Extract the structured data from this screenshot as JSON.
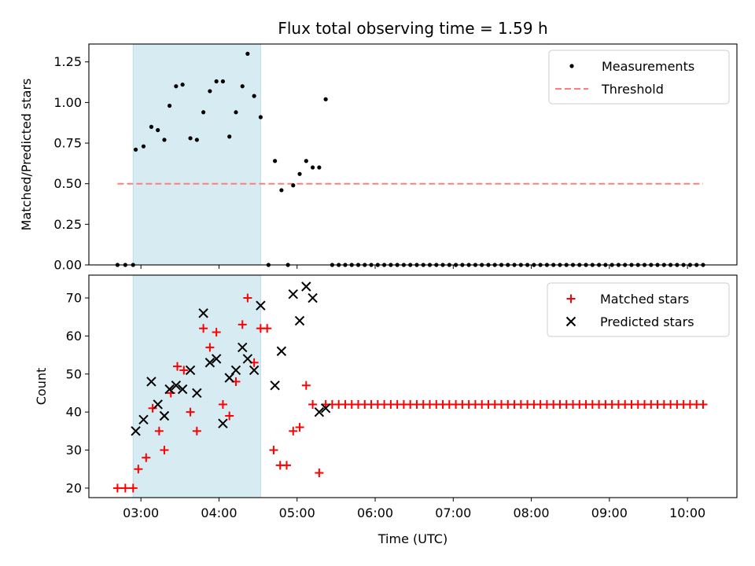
{
  "figure": {
    "title": "Flux total observing time = 1.59 h"
  },
  "chart_data": [
    {
      "type": "scatter",
      "title": "Flux total observing time = 1.59 h",
      "ylabel": "Matched/Predicted stars",
      "ylim": [
        0,
        1.36
      ],
      "yticks": [
        "0.00",
        "0.25",
        "0.50",
        "0.75",
        "1.00",
        "1.25"
      ],
      "shaded_span": [
        "02:54",
        "04:32"
      ],
      "shade_color": "#add8e6",
      "legend_position": "upper right",
      "series": [
        {
          "name": "Measurements",
          "kind": "points",
          "color": "#000000",
          "points": [
            [
              "02:42",
              0
            ],
            [
              "02:48",
              0
            ],
            [
              "02:54",
              0
            ],
            [
              "02:56",
              0.71
            ],
            [
              "03:02",
              0.73
            ],
            [
              "03:08",
              0.85
            ],
            [
              "03:13",
              0.83
            ],
            [
              "03:18",
              0.77
            ],
            [
              "03:22",
              0.98
            ],
            [
              "03:27",
              1.1
            ],
            [
              "03:32",
              1.11
            ],
            [
              "03:38",
              0.78
            ],
            [
              "03:43",
              0.77
            ],
            [
              "03:48",
              0.94
            ],
            [
              "03:53",
              1.07
            ],
            [
              "03:58",
              1.13
            ],
            [
              "04:03",
              1.13
            ],
            [
              "04:08",
              0.79
            ],
            [
              "04:13",
              0.94
            ],
            [
              "04:18",
              1.1
            ],
            [
              "04:22",
              1.3
            ],
            [
              "04:27",
              1.04
            ],
            [
              "04:32",
              0.91
            ],
            [
              "04:38",
              0
            ],
            [
              "04:43",
              0.64
            ],
            [
              "04:48",
              0.46
            ],
            [
              "04:53",
              0
            ],
            [
              "04:57",
              0.49
            ],
            [
              "05:02",
              0.56
            ],
            [
              "05:07",
              0.64
            ],
            [
              "05:12",
              0.6
            ],
            [
              "05:17",
              0.6
            ],
            [
              "05:22",
              1.02
            ],
            [
              "05:27",
              0
            ],
            [
              "05:32",
              0
            ],
            [
              "05:37",
              0
            ],
            [
              "05:42",
              0
            ],
            [
              "05:47",
              0
            ],
            [
              "05:52",
              0
            ],
            [
              "05:57",
              0
            ],
            [
              "06:02",
              0
            ],
            [
              "06:07",
              0
            ],
            [
              "06:12",
              0
            ],
            [
              "06:17",
              0
            ],
            [
              "06:22",
              0
            ],
            [
              "06:27",
              0
            ],
            [
              "06:32",
              0
            ],
            [
              "06:37",
              0
            ],
            [
              "06:42",
              0
            ],
            [
              "06:47",
              0
            ],
            [
              "06:52",
              0
            ],
            [
              "06:57",
              0
            ],
            [
              "07:02",
              0
            ],
            [
              "07:07",
              0
            ],
            [
              "07:12",
              0
            ],
            [
              "07:17",
              0
            ],
            [
              "07:22",
              0
            ],
            [
              "07:27",
              0
            ],
            [
              "07:32",
              0
            ],
            [
              "07:37",
              0
            ],
            [
              "07:42",
              0
            ],
            [
              "07:47",
              0
            ],
            [
              "07:52",
              0
            ],
            [
              "07:57",
              0
            ],
            [
              "08:02",
              0
            ],
            [
              "08:07",
              0
            ],
            [
              "08:12",
              0
            ],
            [
              "08:17",
              0
            ],
            [
              "08:22",
              0
            ],
            [
              "08:27",
              0
            ],
            [
              "08:32",
              0
            ],
            [
              "08:37",
              0
            ],
            [
              "08:42",
              0
            ],
            [
              "08:47",
              0
            ],
            [
              "08:52",
              0
            ],
            [
              "08:57",
              0
            ],
            [
              "09:02",
              0
            ],
            [
              "09:07",
              0
            ],
            [
              "09:12",
              0
            ],
            [
              "09:17",
              0
            ],
            [
              "09:22",
              0
            ],
            [
              "09:27",
              0
            ],
            [
              "09:32",
              0
            ],
            [
              "09:37",
              0
            ],
            [
              "09:42",
              0
            ],
            [
              "09:47",
              0
            ],
            [
              "09:52",
              0
            ],
            [
              "09:57",
              0
            ],
            [
              "10:02",
              0
            ],
            [
              "10:07",
              0
            ],
            [
              "10:12",
              0
            ]
          ]
        },
        {
          "name": "Threshold",
          "kind": "dashed-line",
          "color": "#ff7f7f",
          "value": 0.5,
          "x": [
            "02:42",
            "10:12"
          ]
        }
      ]
    },
    {
      "type": "scatter",
      "xlabel": "Time (UTC)",
      "ylabel": "Count",
      "ylim": [
        17.5,
        76
      ],
      "yticks": [
        "20",
        "30",
        "40",
        "50",
        "60",
        "70"
      ],
      "xlim": [
        "02:20",
        "10:38"
      ],
      "xticks": [
        "03:00",
        "04:00",
        "05:00",
        "06:00",
        "07:00",
        "08:00",
        "09:00",
        "10:00"
      ],
      "shaded_span": [
        "02:54",
        "04:32"
      ],
      "shade_color": "#add8e6",
      "legend_position": "upper right",
      "series": [
        {
          "name": "Matched stars",
          "marker": "plus",
          "color": "#ff0000",
          "points": [
            [
              "02:42",
              20
            ],
            [
              "02:48",
              20
            ],
            [
              "02:54",
              20
            ],
            [
              "02:58",
              25
            ],
            [
              "03:04",
              28
            ],
            [
              "03:09",
              41
            ],
            [
              "03:14",
              35
            ],
            [
              "03:18",
              30
            ],
            [
              "03:23",
              45
            ],
            [
              "03:28",
              52
            ],
            [
              "03:33",
              51
            ],
            [
              "03:38",
              40
            ],
            [
              "03:43",
              35
            ],
            [
              "03:48",
              62
            ],
            [
              "03:53",
              57
            ],
            [
              "03:58",
              61
            ],
            [
              "04:03",
              42
            ],
            [
              "04:08",
              39
            ],
            [
              "04:13",
              48
            ],
            [
              "04:18",
              63
            ],
            [
              "04:22",
              70
            ],
            [
              "04:27",
              53
            ],
            [
              "04:32",
              62
            ],
            [
              "04:37",
              62
            ],
            [
              "04:42",
              30
            ],
            [
              "04:47",
              26
            ],
            [
              "04:52",
              26
            ],
            [
              "04:57",
              35
            ],
            [
              "05:02",
              36
            ],
            [
              "05:07",
              47
            ],
            [
              "05:12",
              42
            ],
            [
              "05:17",
              24
            ],
            [
              "05:22",
              42
            ],
            [
              "05:27",
              42
            ],
            [
              "05:32",
              42
            ],
            [
              "05:37",
              42
            ],
            [
              "05:42",
              42
            ],
            [
              "05:47",
              42
            ],
            [
              "05:52",
              42
            ],
            [
              "05:57",
              42
            ],
            [
              "06:02",
              42
            ],
            [
              "06:07",
              42
            ],
            [
              "06:12",
              42
            ],
            [
              "06:17",
              42
            ],
            [
              "06:22",
              42
            ],
            [
              "06:27",
              42
            ],
            [
              "06:32",
              42
            ],
            [
              "06:37",
              42
            ],
            [
              "06:42",
              42
            ],
            [
              "06:47",
              42
            ],
            [
              "06:52",
              42
            ],
            [
              "06:57",
              42
            ],
            [
              "07:02",
              42
            ],
            [
              "07:07",
              42
            ],
            [
              "07:12",
              42
            ],
            [
              "07:17",
              42
            ],
            [
              "07:22",
              42
            ],
            [
              "07:27",
              42
            ],
            [
              "07:32",
              42
            ],
            [
              "07:37",
              42
            ],
            [
              "07:42",
              42
            ],
            [
              "07:47",
              42
            ],
            [
              "07:52",
              42
            ],
            [
              "07:57",
              42
            ],
            [
              "08:02",
              42
            ],
            [
              "08:07",
              42
            ],
            [
              "08:12",
              42
            ],
            [
              "08:17",
              42
            ],
            [
              "08:22",
              42
            ],
            [
              "08:27",
              42
            ],
            [
              "08:32",
              42
            ],
            [
              "08:37",
              42
            ],
            [
              "08:42",
              42
            ],
            [
              "08:47",
              42
            ],
            [
              "08:52",
              42
            ],
            [
              "08:57",
              42
            ],
            [
              "09:02",
              42
            ],
            [
              "09:07",
              42
            ],
            [
              "09:12",
              42
            ],
            [
              "09:17",
              42
            ],
            [
              "09:22",
              42
            ],
            [
              "09:27",
              42
            ],
            [
              "09:32",
              42
            ],
            [
              "09:37",
              42
            ],
            [
              "09:42",
              42
            ],
            [
              "09:47",
              42
            ],
            [
              "09:52",
              42
            ],
            [
              "09:57",
              42
            ],
            [
              "10:02",
              42
            ],
            [
              "10:07",
              42
            ],
            [
              "10:12",
              42
            ]
          ]
        },
        {
          "name": "Predicted stars",
          "marker": "x",
          "color": "#000000",
          "points": [
            [
              "02:56",
              35
            ],
            [
              "03:02",
              38
            ],
            [
              "03:08",
              48
            ],
            [
              "03:13",
              42
            ],
            [
              "03:18",
              39
            ],
            [
              "03:22",
              46
            ],
            [
              "03:27",
              47
            ],
            [
              "03:32",
              46
            ],
            [
              "03:38",
              51
            ],
            [
              "03:43",
              45
            ],
            [
              "03:48",
              66
            ],
            [
              "03:53",
              53
            ],
            [
              "03:58",
              54
            ],
            [
              "04:03",
              37
            ],
            [
              "04:08",
              49
            ],
            [
              "04:13",
              51
            ],
            [
              "04:18",
              57
            ],
            [
              "04:22",
              54
            ],
            [
              "04:27",
              51
            ],
            [
              "04:32",
              68
            ],
            [
              "04:43",
              47
            ],
            [
              "04:48",
              56
            ],
            [
              "04:57",
              71
            ],
            [
              "05:02",
              64
            ],
            [
              "05:07",
              73
            ],
            [
              "05:12",
              70
            ],
            [
              "05:17",
              40
            ],
            [
              "05:22",
              41
            ]
          ]
        }
      ]
    }
  ]
}
